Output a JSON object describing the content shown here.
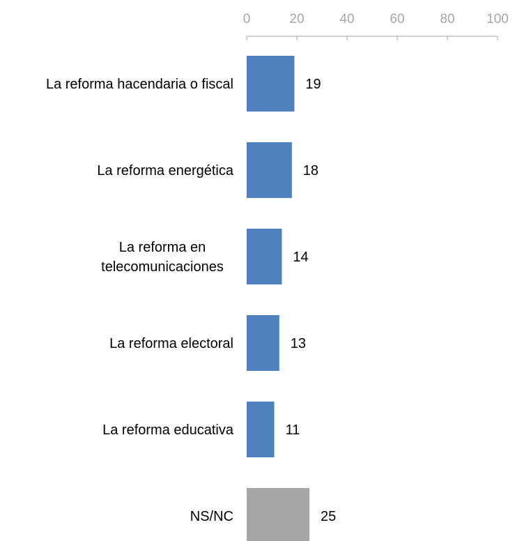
{
  "chart_data": {
    "type": "bar",
    "orientation": "horizontal",
    "axis_position": "top",
    "grid": false,
    "xlim": [
      0,
      100
    ],
    "ticks": [
      0,
      20,
      40,
      60,
      80,
      100
    ],
    "tick_labels": [
      "0",
      "20",
      "40",
      "60",
      "80",
      "100"
    ],
    "categories": [
      [
        "La reforma hacendaria o fiscal"
      ],
      [
        "La reforma energética"
      ],
      [
        "La reforma en",
        "telecomunicaciones"
      ],
      [
        "La reforma electoral"
      ],
      [
        "La reforma educativa"
      ],
      [
        "NS/NC"
      ]
    ],
    "values": [
      19,
      18,
      14,
      13,
      11,
      25
    ],
    "value_labels": [
      "19",
      "18",
      "14",
      "13",
      "11",
      "25"
    ],
    "bar_colors": [
      "#4f81bd",
      "#4f81bd",
      "#4f81bd",
      "#4f81bd",
      "#4f81bd",
      "#a6a6a6"
    ],
    "axis_color": "#a6a6a6"
  }
}
